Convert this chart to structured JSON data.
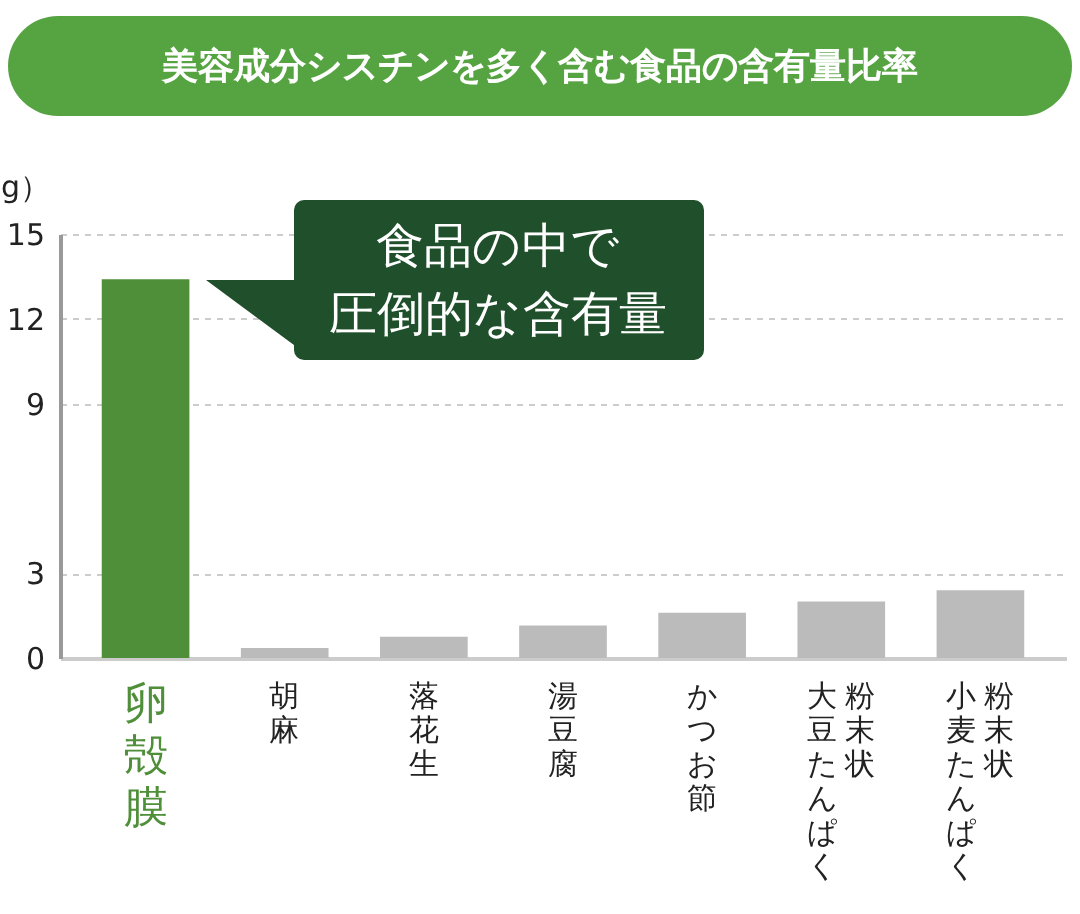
{
  "chart_data": {
    "type": "bar",
    "title": "美容成分シスチンを多く含む食品の含有量比率",
    "ylabel": "g）",
    "categories": [
      "卵殻膜",
      "胡麻",
      "落花生",
      "湯豆腐",
      "かつお節",
      "粉末状大豆たんぱく",
      "粉末状小麦たんぱく"
    ],
    "values": [
      13.4,
      0.35,
      0.75,
      1.15,
      1.6,
      2.0,
      2.4
    ],
    "colors": [
      "#4f8f3a",
      "#bbbbbb",
      "#bbbbbb",
      "#bbbbbb",
      "#bbbbbb",
      "#bbbbbb",
      "#bbbbbb"
    ],
    "ylim": [
      0,
      15
    ],
    "yticks": [
      0,
      3,
      9,
      12,
      15
    ],
    "grid": "y",
    "annotations": [
      "食品の中で",
      "圧倒的な含有量"
    ]
  }
}
